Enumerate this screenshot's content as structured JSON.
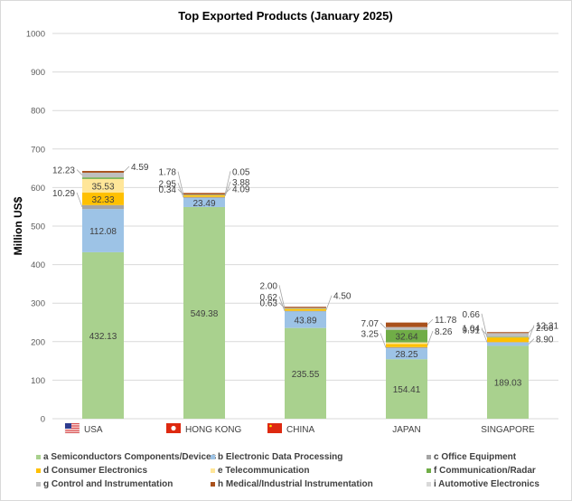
{
  "chart_data": {
    "type": "bar",
    "stacked": true,
    "title": "Top Exported Products (January 2025)",
    "xlabel": "",
    "ylabel": "Million US$",
    "ylim": [
      0,
      1000
    ],
    "yticks": [
      0,
      100,
      200,
      300,
      400,
      500,
      600,
      700,
      800,
      900,
      1000
    ],
    "grid": true,
    "legend_position": "bottom",
    "categories": [
      "USA",
      "HONG KONG",
      "CHINA",
      "JAPAN",
      "SINGAPORE"
    ],
    "category_flags": [
      "us-flag",
      "hong-kong-flag",
      "china-flag",
      null,
      null
    ],
    "series": [
      {
        "key": "a",
        "name": "a Semiconductors Components/Devices",
        "color": "#a9d18e",
        "values": [
          432.13,
          549.38,
          235.55,
          154.41,
          189.03
        ],
        "labels": [
          "432.13",
          "549.38",
          "235.55",
          "154.41",
          "189.03"
        ]
      },
      {
        "key": "b",
        "name": "b Electronic Data Processing",
        "color": "#9dc3e6",
        "values": [
          112.08,
          23.49,
          43.89,
          28.25,
          8.9
        ],
        "labels": [
          "112.08",
          "23.49",
          "43.89",
          "28.25",
          "8.90"
        ]
      },
      {
        "key": "c",
        "name": "c Office Equipment",
        "color": "#a5a5a5",
        "values": [
          10.29,
          2.95,
          0.62,
          3.25,
          1.04
        ],
        "labels": [
          "10.29",
          "2.95",
          "0.62",
          "3.25",
          "1.04"
        ]
      },
      {
        "key": "d",
        "name": "d Consumer Electronics",
        "color": "#ffc000",
        "values": [
          32.33,
          3.88,
          4.5,
          8.26,
          12.31
        ],
        "labels": [
          "32.33",
          "3.88",
          "4.50",
          "8.26",
          "12.31"
        ]
      },
      {
        "key": "e",
        "name": "e Telecommunication",
        "color": "#ffe699",
        "values": [
          35.53,
          1.78,
          2.0,
          4.0,
          0.66
        ],
        "labels": [
          "35.53",
          "1.78",
          "2.00",
          "",
          "0.66"
        ]
      },
      {
        "key": "f",
        "name": "f Communication/Radar",
        "color": "#70ad47",
        "values": [
          4.0,
          0.05,
          0.3,
          32.64,
          0.3
        ],
        "labels": [
          "",
          "0.05",
          "",
          "32.64",
          ""
        ]
      },
      {
        "key": "g",
        "name": "g Control and Instrumentation",
        "color": "#bfbfbf",
        "values": [
          12.23,
          0.34,
          0.63,
          7.07,
          9.91
        ],
        "labels": [
          "12.23",
          "0.34",
          "0.63",
          "7.07",
          "9.91"
        ]
      },
      {
        "key": "h",
        "name": "h Medical/Industrial Instrumentation",
        "color": "#a9511c",
        "values": [
          4.59,
          4.09,
          3.0,
          11.78,
          2.66
        ],
        "labels": [
          "4.59",
          "4.09",
          "",
          "11.78",
          "2.66"
        ]
      },
      {
        "key": "i",
        "name": "i Automotive Electronics",
        "color": "#d9d9d9",
        "values": [
          0,
          0,
          0,
          0,
          0
        ],
        "labels": [
          "",
          "",
          "",
          "",
          ""
        ]
      }
    ]
  }
}
